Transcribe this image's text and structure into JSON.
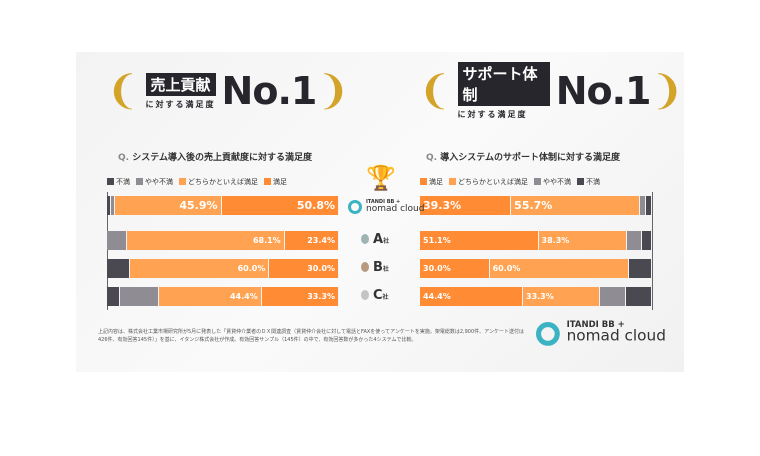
{
  "left_badge": {
    "title": "売上貢献",
    "sub": "に対する満足度",
    "no1": "No.1"
  },
  "right_badge": {
    "title": "サポート体制",
    "sub": "に対する満足度",
    "no1": "No.1"
  },
  "logo": {
    "line1": "ITANDI BB +",
    "line2": "nomad cloud"
  },
  "rows": [
    {
      "label": "A",
      "suffix": "社"
    },
    {
      "label": "B",
      "suffix": "社"
    },
    {
      "label": "C",
      "suffix": "社"
    }
  ],
  "footnote": "上記内容は、株式会社工業市場研究所が5月に発表した「賃貸仲介業者のＤＸ関連調査（賃貸仲介会社に対して電話とFAXを使ってアンケートを実施。架電総数は2,900件、アンケート送付は426件、有効回答145件）」を基に、イタンジ株式会社が作成。有効回答サンプル（145件）の中で、有効回答数が多かった4システムで比較。",
  "colors": {
    "不満": "#4a4850",
    "やや不満": "#8f8d93",
    "どちらかといえば満足": "#ffa352",
    "満足": "#ff8c35"
  },
  "chart_data": [
    {
      "type": "bar",
      "stacked": true,
      "orientation": "horizontal",
      "q": "Q.",
      "title": "システム導入後の売上貢献度に対する満足度",
      "categories": [
        "nomad cloud",
        "A社",
        "B社",
        "C社"
      ],
      "legend": [
        "不満",
        "やや不満",
        "どちらかといえば満足",
        "満足"
      ],
      "series": [
        {
          "name": "不満",
          "values": [
            1.4,
            0,
            10.0,
            5.6
          ]
        },
        {
          "name": "やや不満",
          "values": [
            1.9,
            8.5,
            0,
            16.7
          ]
        },
        {
          "name": "どちらかといえば満足",
          "values": [
            45.9,
            68.1,
            60.0,
            44.4
          ]
        },
        {
          "name": "満足",
          "values": [
            50.8,
            23.4,
            30.0,
            33.3
          ]
        }
      ],
      "labels": [
        [
          "",
          "",
          "45.9%",
          "50.8%"
        ],
        [
          "",
          "",
          "68.1%",
          "23.4%"
        ],
        [
          "",
          "",
          "60.0%",
          "30.0%"
        ],
        [
          "",
          "",
          "44.4%",
          "33.3%"
        ]
      ]
    },
    {
      "type": "bar",
      "stacked": true,
      "orientation": "horizontal",
      "q": "Q.",
      "title": "導入システムのサポート体制に対する満足度",
      "categories": [
        "nomad cloud",
        "A社",
        "B社",
        "C社"
      ],
      "legend": [
        "満足",
        "どちらかといえば満足",
        "やや不満",
        "不満"
      ],
      "series": [
        {
          "name": "満足",
          "values": [
            39.3,
            51.1,
            30.0,
            44.4
          ]
        },
        {
          "name": "どちらかといえば満足",
          "values": [
            55.7,
            38.3,
            60.0,
            33.3
          ]
        },
        {
          "name": "やや不満",
          "values": [
            2.6,
            6.4,
            0,
            11.1
          ]
        },
        {
          "name": "不満",
          "values": [
            2.4,
            4.2,
            10.0,
            11.2
          ]
        }
      ],
      "labels": [
        [
          "39.3%",
          "55.7%",
          "",
          ""
        ],
        [
          "51.1%",
          "38.3%",
          "",
          ""
        ],
        [
          "30.0%",
          "60.0%",
          "",
          ""
        ],
        [
          "44.4%",
          "33.3%",
          "",
          ""
        ]
      ]
    }
  ]
}
